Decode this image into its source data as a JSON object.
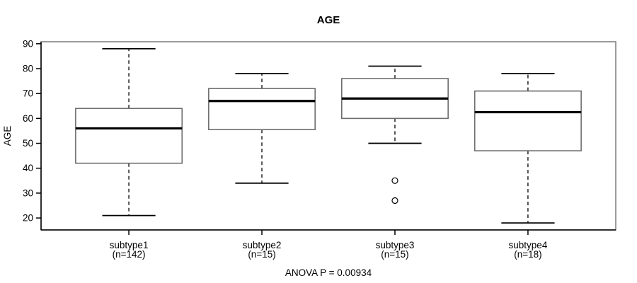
{
  "title": "AGE",
  "colors": {
    "background": "#ffffff",
    "frame": "#7a7a7a",
    "box_border": "#6e6e6e",
    "box_fill": "#ffffff",
    "median": "#000000",
    "whisker": "#000000",
    "axis": "#000000",
    "text": "#000000"
  },
  "chart_data": {
    "type": "boxplot",
    "title": "AGE",
    "xlabel": "",
    "ylabel": "AGE",
    "annotation": "ANOVA P = 0.00934",
    "y_ticks": [
      20,
      30,
      40,
      50,
      60,
      70,
      80,
      90
    ],
    "ylim": [
      15.2,
      90.8
    ],
    "grid": false,
    "legend": null,
    "categories": [
      "subtype1",
      "subtype2",
      "subtype3",
      "subtype4"
    ],
    "category_sublabels": [
      "(n=142)",
      "(n=15)",
      "(n=15)",
      "(n=18)"
    ],
    "groups": [
      {
        "label": "subtype1",
        "sublabel": "(n=142)",
        "n": 142,
        "whisker_low": 21,
        "q1": 42,
        "median": 56,
        "q3": 64,
        "whisker_high": 88,
        "outliers": []
      },
      {
        "label": "subtype2",
        "sublabel": "(n=15)",
        "n": 15,
        "whisker_low": 34,
        "q1": 55.5,
        "median": 67,
        "q3": 72,
        "whisker_high": 78,
        "outliers": []
      },
      {
        "label": "subtype3",
        "sublabel": "(n=15)",
        "n": 15,
        "whisker_low": 50,
        "q1": 60,
        "median": 68,
        "q3": 76,
        "whisker_high": 81,
        "outliers": [
          35,
          27
        ]
      },
      {
        "label": "subtype4",
        "sublabel": "(n=18)",
        "n": 18,
        "whisker_low": 18,
        "q1": 47,
        "median": 62.5,
        "q3": 71,
        "whisker_high": 78,
        "outliers": []
      }
    ]
  }
}
